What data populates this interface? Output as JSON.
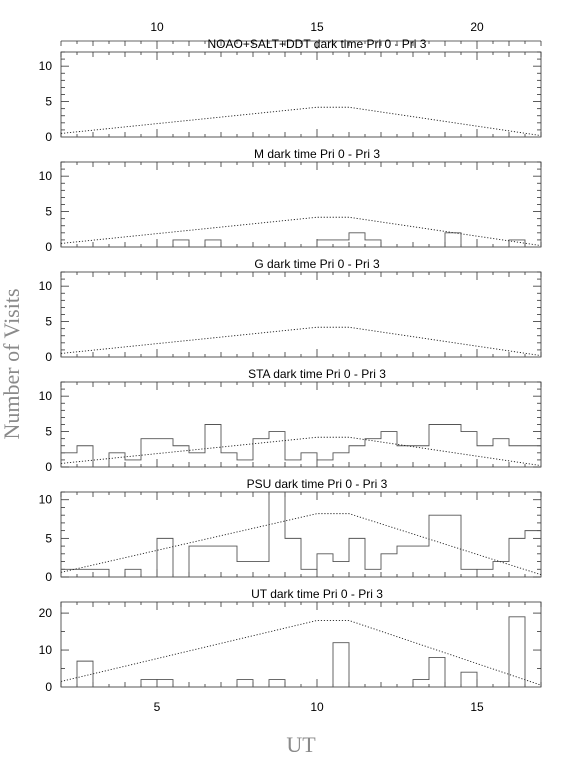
{
  "chart_data": {
    "type": "histogram",
    "xlabel": "UT",
    "ylabel": "Number of Visits",
    "xlim": [
      2.0,
      17.0
    ],
    "x_bottom_ticks": [
      "5",
      "10",
      "15"
    ],
    "top_axis": {
      "ticks": [
        "10",
        "15",
        "20"
      ],
      "xlim": [
        7.0,
        22.0
      ]
    },
    "bin_start": 2.0,
    "bin_width": 0.5,
    "panels": [
      {
        "title": "NOAO+SALT+DDT dark time Pri 0 - Pri 3",
        "ylim": [
          0,
          12
        ],
        "yticks": [
          "0",
          "5",
          "10"
        ],
        "histogram": [
          0,
          0,
          0,
          0,
          0,
          0,
          0,
          0,
          0,
          0,
          0,
          0,
          0,
          0,
          0,
          0,
          0,
          0,
          0,
          0,
          0,
          0,
          0,
          0,
          0,
          0,
          0,
          0,
          0,
          0
        ],
        "model": {
          "x": [
            2.0,
            10.0,
            11.0,
            17.0
          ],
          "y": [
            0.5,
            4.2,
            4.2,
            0.2
          ]
        }
      },
      {
        "title": "M    dark time Pri 0 - Pri 3",
        "ylim": [
          0,
          12
        ],
        "yticks": [
          "0",
          "5",
          "10"
        ],
        "histogram": [
          0,
          0,
          0,
          0,
          0,
          0,
          0,
          1,
          0,
          1,
          0,
          0,
          0,
          0,
          0,
          0,
          1,
          1,
          2,
          1,
          0,
          0,
          0,
          0,
          2,
          0,
          0,
          0,
          1,
          0
        ],
        "model": {
          "x": [
            2.0,
            10.0,
            11.0,
            17.0
          ],
          "y": [
            0.5,
            4.2,
            4.2,
            0.2
          ]
        }
      },
      {
        "title": "G    dark time Pri 0 - Pri 3",
        "ylim": [
          0,
          12
        ],
        "yticks": [
          "0",
          "5",
          "10"
        ],
        "histogram": [
          0,
          0,
          0,
          0,
          0,
          0,
          0,
          0,
          0,
          0,
          0,
          0,
          0,
          0,
          0,
          0,
          0,
          0,
          0,
          0,
          0,
          0,
          0,
          0,
          0,
          0,
          0,
          0,
          0,
          0
        ],
        "model": {
          "x": [
            2.0,
            10.0,
            11.0,
            17.0
          ],
          "y": [
            0.5,
            4.2,
            4.2,
            0.2
          ]
        }
      },
      {
        "title": "STA    dark time Pri 0 - Pri 3",
        "ylim": [
          0,
          12
        ],
        "yticks": [
          "0",
          "5",
          "10"
        ],
        "histogram": [
          2,
          3,
          0,
          2,
          1,
          4,
          4,
          3,
          2,
          6,
          2,
          1,
          4,
          5,
          1,
          2,
          1,
          2,
          3,
          4,
          5,
          3,
          3,
          6,
          6,
          5,
          3,
          4,
          3,
          3
        ],
        "model": {
          "x": [
            2.0,
            10.0,
            11.0,
            17.0
          ],
          "y": [
            0.5,
            4.2,
            4.2,
            0.2
          ]
        }
      },
      {
        "title": "PSU    dark time Pri 0 - Pri 3",
        "ylim": [
          0,
          11
        ],
        "yticks": [
          "0",
          "5",
          "10"
        ],
        "histogram": [
          1,
          1,
          1,
          0,
          1,
          0,
          5,
          0,
          4,
          4,
          4,
          2,
          2,
          11,
          5,
          1,
          3,
          2,
          5,
          1,
          3,
          4,
          4,
          8,
          8,
          1,
          1,
          2,
          5,
          6
        ],
        "model": {
          "x": [
            2.0,
            10.0,
            11.0,
            17.0
          ],
          "y": [
            0.6,
            8.2,
            8.2,
            0.3
          ]
        }
      },
      {
        "title": "UT    dark time Pri 0 - Pri 3",
        "ylim": [
          0,
          23
        ],
        "yticks": [
          "0",
          "10",
          "20"
        ],
        "histogram": [
          0,
          7,
          0,
          0,
          0,
          2,
          2,
          0,
          0,
          0,
          0,
          2,
          0,
          2,
          0,
          0,
          0,
          12,
          0,
          0,
          0,
          0,
          2,
          8,
          0,
          4,
          0,
          0,
          19,
          0
        ],
        "model": {
          "x": [
            2.0,
            10.0,
            11.0,
            17.0
          ],
          "y": [
            1.5,
            18.0,
            18.0,
            0.5
          ]
        }
      }
    ]
  }
}
